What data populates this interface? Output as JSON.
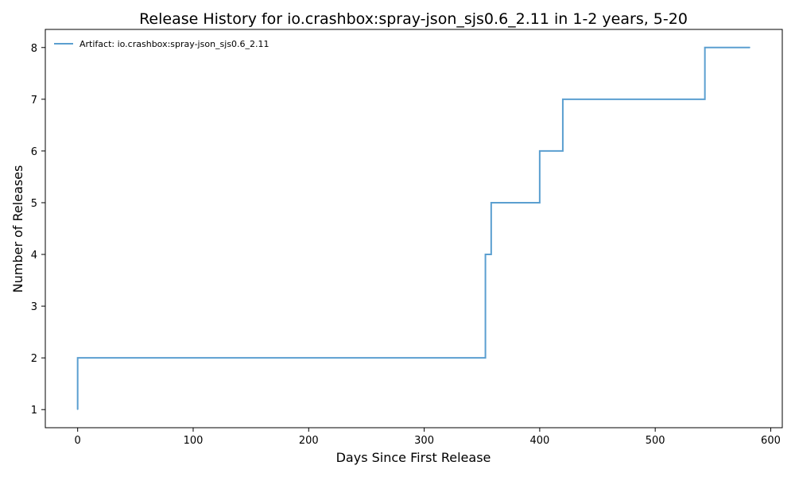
{
  "chart_data": {
    "type": "line",
    "title": "Release History for io.crashbox:spray-json_sjs0.6_2.11 in 1-2 years, 5-20",
    "xlabel": "Days Since First Release",
    "ylabel": "Number of Releases",
    "xlim": [
      -28,
      610
    ],
    "ylim": [
      0.65,
      8.35
    ],
    "xticks": [
      0,
      100,
      200,
      300,
      400,
      500,
      600
    ],
    "yticks": [
      1,
      2,
      3,
      4,
      5,
      6,
      7,
      8
    ],
    "grid": false,
    "legend_position": "top-left",
    "step": "post",
    "series": [
      {
        "name": "Artifact: io.crashbox:spray-json_sjs0.6_2.11",
        "color": "#5b9fd0",
        "x": [
          0,
          0,
          353,
          358,
          400,
          420,
          543,
          582
        ],
        "y": [
          1,
          2,
          4,
          5,
          6,
          7,
          8,
          8
        ]
      }
    ]
  }
}
